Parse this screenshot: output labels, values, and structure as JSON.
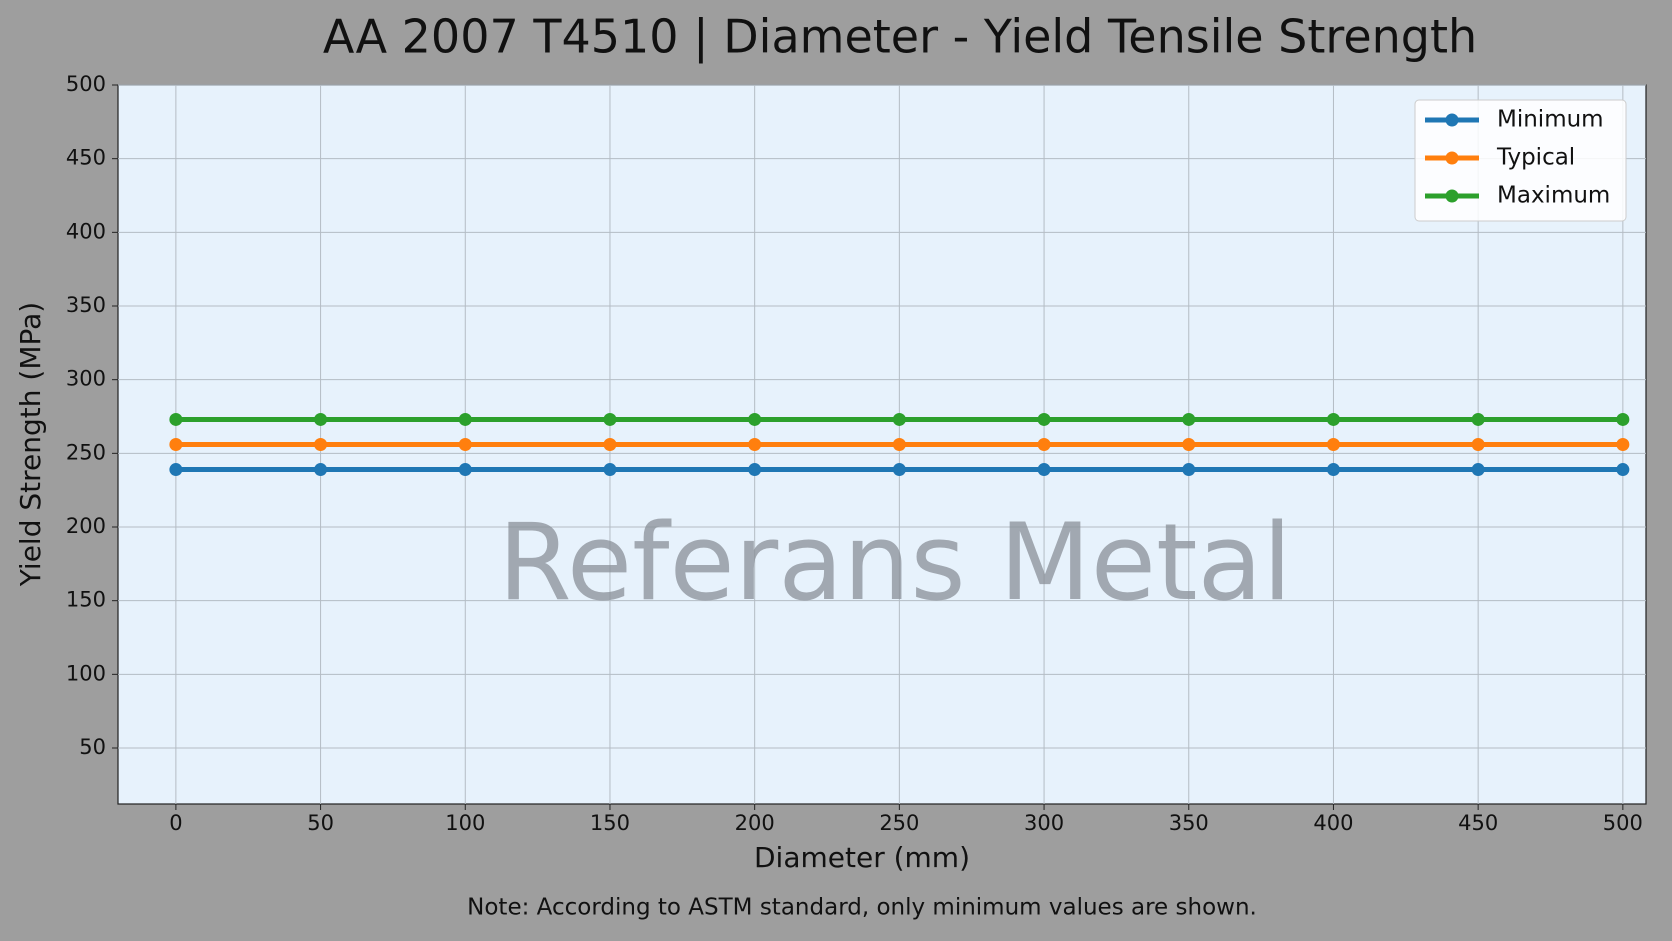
{
  "chart_data": {
    "type": "line",
    "title": "AA 2007 T4510 | Diameter - Yield Tensile Strength",
    "x_label": "Diameter (mm)",
    "y_label": "Yield Strength (MPa)",
    "note": "Note: According to ASTM standard, only minimum values are shown.",
    "watermark": "Referans Metal",
    "x": [
      0,
      50,
      100,
      150,
      200,
      250,
      300,
      350,
      400,
      450,
      500
    ],
    "series": [
      {
        "name": "Minimum",
        "color": "#1f77b4",
        "values": [
          239,
          239,
          239,
          239,
          239,
          239,
          239,
          239,
          239,
          239,
          239
        ]
      },
      {
        "name": "Typical",
        "color": "#ff7f0e",
        "values": [
          256,
          256,
          256,
          256,
          256,
          256,
          256,
          256,
          256,
          256,
          256
        ]
      },
      {
        "name": "Maximum",
        "color": "#2ca02c",
        "values": [
          273,
          273,
          273,
          273,
          273,
          273,
          273,
          273,
          273,
          273,
          273
        ]
      }
    ],
    "xlim": [
      -20,
      508
    ],
    "ylim": [
      12,
      500
    ],
    "xticks": [
      0,
      50,
      100,
      150,
      200,
      250,
      300,
      350,
      400,
      450,
      500
    ],
    "yticks": [
      50,
      100,
      150,
      200,
      250,
      300,
      350,
      400,
      450,
      500
    ],
    "grid": true,
    "legend": "upper right"
  }
}
